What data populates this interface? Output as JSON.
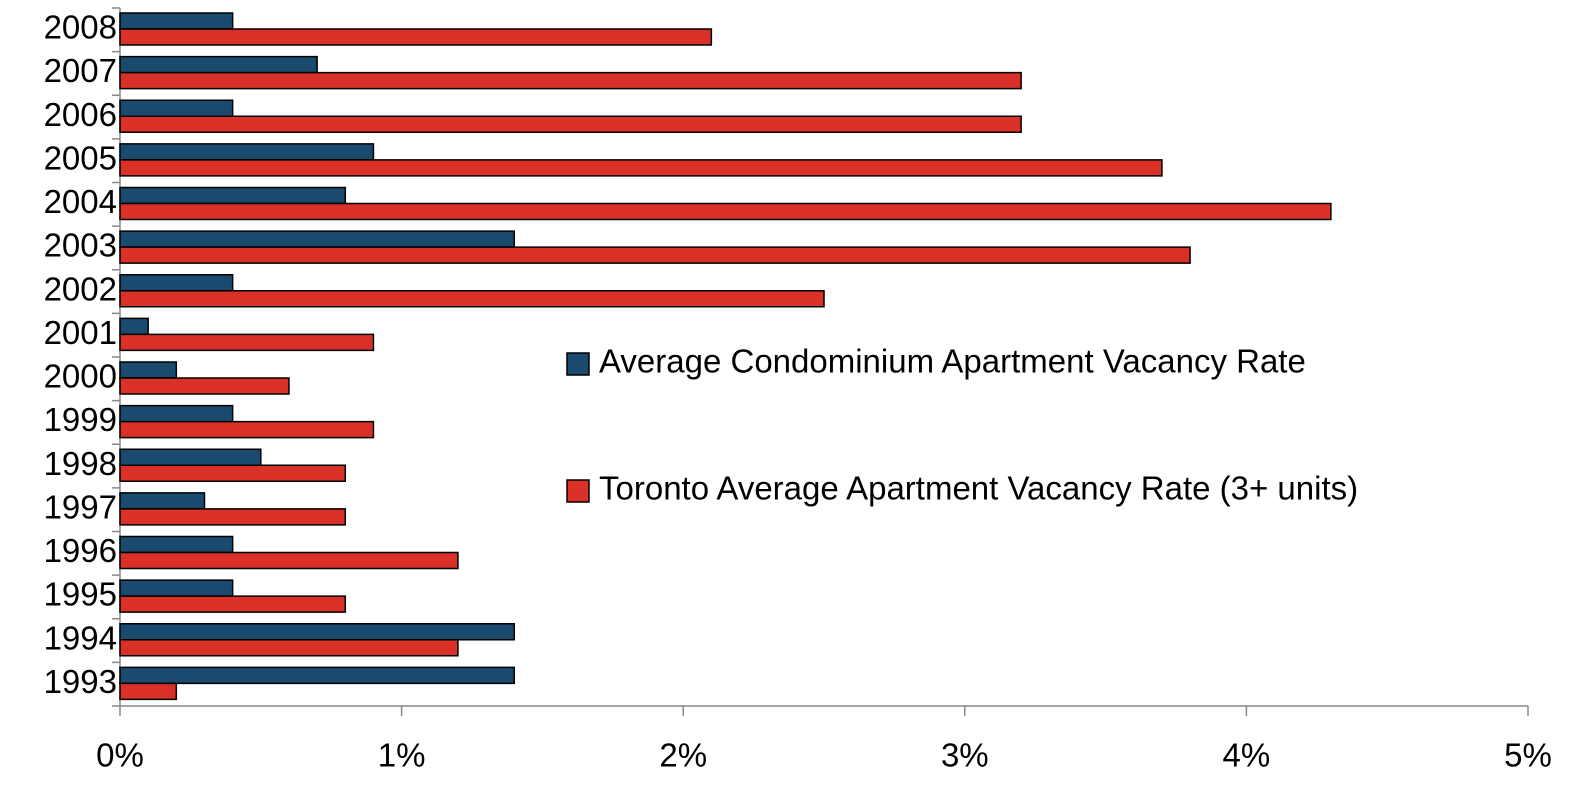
{
  "chart_data": {
    "type": "bar",
    "orientation": "horizontal",
    "categories": [
      "1993",
      "1994",
      "1995",
      "1996",
      "1997",
      "1998",
      "1999",
      "2000",
      "2001",
      "2002",
      "2003",
      "2004",
      "2005",
      "2006",
      "2007",
      "2008"
    ],
    "series": [
      {
        "name": "Average Condominium Apartment Vacancy Rate",
        "color": "#1b4a6f",
        "values": [
          1.4,
          1.4,
          0.4,
          0.4,
          0.3,
          0.5,
          0.4,
          0.2,
          0.1,
          0.4,
          1.4,
          0.8,
          0.9,
          0.4,
          0.7,
          0.4
        ]
      },
      {
        "name": "Toronto Average Apartment Vacancy Rate (3+ units)",
        "color": "#d93127",
        "values": [
          0.2,
          1.2,
          0.8,
          1.2,
          0.8,
          0.8,
          0.9,
          0.6,
          0.9,
          2.5,
          3.8,
          4.3,
          3.7,
          3.2,
          3.2,
          2.1
        ]
      }
    ],
    "xlim": [
      0,
      5
    ],
    "xticks": [
      {
        "value": 0,
        "label": "0%"
      },
      {
        "value": 1,
        "label": "1%"
      },
      {
        "value": 2,
        "label": "2%"
      },
      {
        "value": 3,
        "label": "3%"
      },
      {
        "value": 4,
        "label": "4%"
      },
      {
        "value": 5,
        "label": "5%"
      }
    ],
    "grid": false,
    "legend": "right"
  }
}
